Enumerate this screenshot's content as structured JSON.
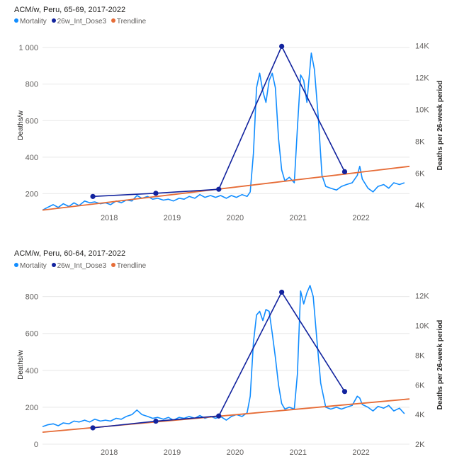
{
  "colors": {
    "mortality": "#118dff",
    "dose": "#12239e",
    "trend": "#e66c37",
    "axis_text": "#605e5c",
    "grid": "#e8e8e8"
  },
  "chart_data": [
    {
      "type": "line",
      "title": "ACM/w, Peru, 65-69, 2017-2022",
      "legend": [
        "Mortality",
        "26w_Int_Dose3",
        "Trendline"
      ],
      "legend_position": "top-left",
      "ylabel": "Deaths/w",
      "y2label": "Deaths per 26-week period",
      "x_ticks": [
        2018,
        2019,
        2020,
        2021,
        2022
      ],
      "y_ticks": [
        {
          "v": 200,
          "t": "200"
        },
        {
          "v": 400,
          "t": "400"
        },
        {
          "v": 600,
          "t": "600"
        },
        {
          "v": 800,
          "t": "800"
        },
        {
          "v": 1000,
          "t": "1 000"
        }
      ],
      "y2_ticks": [
        {
          "v": 4000,
          "t": "4K"
        },
        {
          "v": 6000,
          "t": "6K"
        },
        {
          "v": 8000,
          "t": "8K"
        },
        {
          "v": 10000,
          "t": "10K"
        },
        {
          "v": 12000,
          "t": "12K"
        },
        {
          "v": 14000,
          "t": "14K"
        }
      ],
      "xlim": [
        2017.0,
        2022.83
      ],
      "ylim": [
        128,
        1020
      ],
      "y2lim": [
        3900,
        14100
      ],
      "series": [
        {
          "name": "Mortality",
          "axis": "left",
          "style": "line",
          "points": [
            [
              2017.0,
              110
            ],
            [
              2017.08,
              125
            ],
            [
              2017.17,
              140
            ],
            [
              2017.25,
              125
            ],
            [
              2017.33,
              145
            ],
            [
              2017.42,
              130
            ],
            [
              2017.5,
              150
            ],
            [
              2017.58,
              135
            ],
            [
              2017.67,
              160
            ],
            [
              2017.75,
              150
            ],
            [
              2017.83,
              155
            ],
            [
              2017.92,
              145
            ],
            [
              2018.0,
              150
            ],
            [
              2018.08,
              140
            ],
            [
              2018.17,
              160
            ],
            [
              2018.25,
              150
            ],
            [
              2018.33,
              165
            ],
            [
              2018.42,
              160
            ],
            [
              2018.5,
              190
            ],
            [
              2018.58,
              175
            ],
            [
              2018.67,
              185
            ],
            [
              2018.75,
              170
            ],
            [
              2018.83,
              175
            ],
            [
              2018.92,
              165
            ],
            [
              2019.0,
              170
            ],
            [
              2019.08,
              160
            ],
            [
              2019.17,
              175
            ],
            [
              2019.25,
              170
            ],
            [
              2019.33,
              185
            ],
            [
              2019.42,
              175
            ],
            [
              2019.5,
              195
            ],
            [
              2019.58,
              180
            ],
            [
              2019.67,
              190
            ],
            [
              2019.75,
              180
            ],
            [
              2019.83,
              190
            ],
            [
              2019.92,
              175
            ],
            [
              2020.0,
              190
            ],
            [
              2020.08,
              180
            ],
            [
              2020.17,
              195
            ],
            [
              2020.25,
              185
            ],
            [
              2020.3,
              210
            ],
            [
              2020.35,
              420
            ],
            [
              2020.4,
              780
            ],
            [
              2020.45,
              860
            ],
            [
              2020.5,
              760
            ],
            [
              2020.55,
              700
            ],
            [
              2020.6,
              820
            ],
            [
              2020.65,
              860
            ],
            [
              2020.7,
              780
            ],
            [
              2020.75,
              500
            ],
            [
              2020.8,
              330
            ],
            [
              2020.85,
              270
            ],
            [
              2020.92,
              290
            ],
            [
              2021.0,
              260
            ],
            [
              2021.05,
              560
            ],
            [
              2021.1,
              850
            ],
            [
              2021.15,
              820
            ],
            [
              2021.2,
              700
            ],
            [
              2021.27,
              970
            ],
            [
              2021.32,
              880
            ],
            [
              2021.38,
              620
            ],
            [
              2021.44,
              300
            ],
            [
              2021.5,
              240
            ],
            [
              2021.58,
              230
            ],
            [
              2021.67,
              220
            ],
            [
              2021.75,
              240
            ],
            [
              2021.83,
              250
            ],
            [
              2021.92,
              260
            ],
            [
              2022.0,
              300
            ],
            [
              2022.04,
              350
            ],
            [
              2022.08,
              280
            ],
            [
              2022.17,
              230
            ],
            [
              2022.25,
              210
            ],
            [
              2022.33,
              240
            ],
            [
              2022.42,
              250
            ],
            [
              2022.5,
              230
            ],
            [
              2022.58,
              260
            ],
            [
              2022.67,
              250
            ],
            [
              2022.75,
              260
            ]
          ]
        },
        {
          "name": "26w_Int_Dose3",
          "axis": "right",
          "style": "line-markers",
          "points": [
            [
              2017.8,
              4550
            ],
            [
              2018.8,
              4750
            ],
            [
              2019.8,
              5000
            ],
            [
              2020.8,
              13950
            ],
            [
              2021.8,
              6100
            ]
          ]
        },
        {
          "name": "Trendline",
          "axis": "left",
          "style": "line",
          "points": [
            [
              2017.0,
              110
            ],
            [
              2022.83,
              350
            ]
          ]
        }
      ]
    },
    {
      "type": "line",
      "title": "ACM/w, Peru, 60-64, 2017-2022",
      "legend": [
        "Mortality",
        "26w_Int_Dose3",
        "Trendline"
      ],
      "legend_position": "top-left",
      "ylabel": "Deaths/w",
      "y2label": "Deaths per 26-week period",
      "x_ticks": [
        2018,
        2019,
        2020,
        2021,
        2022
      ],
      "y_ticks": [
        {
          "v": 0,
          "t": "0"
        },
        {
          "v": 200,
          "t": "200"
        },
        {
          "v": 400,
          "t": "400"
        },
        {
          "v": 600,
          "t": "600"
        },
        {
          "v": 800,
          "t": "800"
        }
      ],
      "y2_ticks": [
        {
          "v": 2000,
          "t": "2K"
        },
        {
          "v": 4000,
          "t": "4K"
        },
        {
          "v": 6000,
          "t": "6K"
        },
        {
          "v": 8000,
          "t": "8K"
        },
        {
          "v": 10000,
          "t": "10K"
        },
        {
          "v": 12000,
          "t": "12K"
        }
      ],
      "xlim": [
        2017.0,
        2022.83
      ],
      "ylim": [
        0,
        860
      ],
      "y2lim": [
        2000,
        12700
      ],
      "series": [
        {
          "name": "Mortality",
          "axis": "left",
          "style": "line",
          "points": [
            [
              2017.0,
              95
            ],
            [
              2017.08,
              105
            ],
            [
              2017.17,
              110
            ],
            [
              2017.25,
              100
            ],
            [
              2017.33,
              115
            ],
            [
              2017.42,
              110
            ],
            [
              2017.5,
              125
            ],
            [
              2017.58,
              120
            ],
            [
              2017.67,
              130
            ],
            [
              2017.75,
              120
            ],
            [
              2017.83,
              135
            ],
            [
              2017.92,
              125
            ],
            [
              2018.0,
              130
            ],
            [
              2018.08,
              125
            ],
            [
              2018.17,
              140
            ],
            [
              2018.25,
              135
            ],
            [
              2018.33,
              150
            ],
            [
              2018.42,
              160
            ],
            [
              2018.5,
              185
            ],
            [
              2018.58,
              160
            ],
            [
              2018.67,
              150
            ],
            [
              2018.75,
              140
            ],
            [
              2018.83,
              145
            ],
            [
              2018.92,
              135
            ],
            [
              2019.0,
              145
            ],
            [
              2019.08,
              130
            ],
            [
              2019.17,
              145
            ],
            [
              2019.25,
              140
            ],
            [
              2019.33,
              150
            ],
            [
              2019.42,
              140
            ],
            [
              2019.5,
              155
            ],
            [
              2019.58,
              140
            ],
            [
              2019.67,
              150
            ],
            [
              2019.75,
              140
            ],
            [
              2019.83,
              150
            ],
            [
              2019.92,
              130
            ],
            [
              2020.0,
              150
            ],
            [
              2020.08,
              160
            ],
            [
              2020.17,
              150
            ],
            [
              2020.25,
              170
            ],
            [
              2020.3,
              260
            ],
            [
              2020.35,
              550
            ],
            [
              2020.4,
              700
            ],
            [
              2020.45,
              720
            ],
            [
              2020.5,
              670
            ],
            [
              2020.55,
              730
            ],
            [
              2020.6,
              720
            ],
            [
              2020.65,
              600
            ],
            [
              2020.7,
              470
            ],
            [
              2020.75,
              320
            ],
            [
              2020.8,
              220
            ],
            [
              2020.85,
              190
            ],
            [
              2020.92,
              200
            ],
            [
              2021.0,
              190
            ],
            [
              2021.05,
              380
            ],
            [
              2021.1,
              830
            ],
            [
              2021.15,
              760
            ],
            [
              2021.2,
              820
            ],
            [
              2021.25,
              860
            ],
            [
              2021.3,
              800
            ],
            [
              2021.35,
              600
            ],
            [
              2021.42,
              330
            ],
            [
              2021.5,
              200
            ],
            [
              2021.58,
              190
            ],
            [
              2021.67,
              200
            ],
            [
              2021.75,
              190
            ],
            [
              2021.83,
              200
            ],
            [
              2021.92,
              210
            ],
            [
              2022.0,
              260
            ],
            [
              2022.04,
              250
            ],
            [
              2022.08,
              215
            ],
            [
              2022.17,
              200
            ],
            [
              2022.25,
              180
            ],
            [
              2022.33,
              205
            ],
            [
              2022.42,
              195
            ],
            [
              2022.5,
              210
            ],
            [
              2022.58,
              180
            ],
            [
              2022.67,
              195
            ],
            [
              2022.75,
              165
            ]
          ]
        },
        {
          "name": "26w_Int_Dose3",
          "axis": "right",
          "style": "line-markers",
          "points": [
            [
              2017.8,
              3100
            ],
            [
              2018.8,
              3550
            ],
            [
              2019.8,
              3900
            ],
            [
              2020.8,
              12250
            ],
            [
              2021.8,
              5550
            ]
          ]
        },
        {
          "name": "Trendline",
          "axis": "left",
          "style": "line",
          "points": [
            [
              2017.0,
              65
            ],
            [
              2022.83,
              245
            ]
          ]
        }
      ]
    }
  ]
}
